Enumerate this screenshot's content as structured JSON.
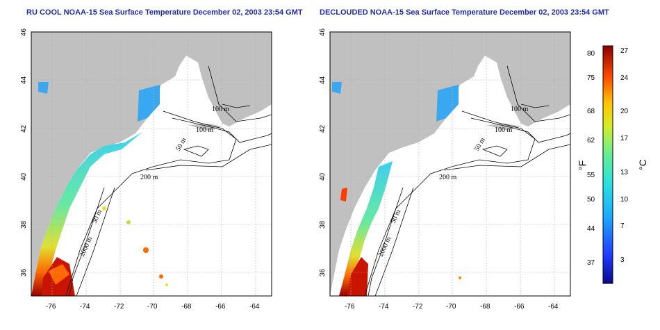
{
  "left_panel": {
    "title": "RU COOL NOAA-15 Sea Surface Temperature December 02, 2003 23:54 GMT",
    "contour_labels": [
      "100 m",
      "100 m",
      "50 m",
      "200 m",
      "50 m",
      "2000 m"
    ]
  },
  "right_panel": {
    "title": "DECLOUDED NOAA-15 Sea Surface Temperature December 02, 2003 23:54 GMT",
    "contour_labels": [
      "100 m",
      "100 m",
      "50 m",
      "200 m",
      "50 m",
      "2000 m"
    ]
  },
  "axes": {
    "lon_ticks": [
      "-76",
      "-74",
      "-72",
      "-70",
      "-68",
      "-66",
      "-64"
    ],
    "lat_ticks": [
      "46",
      "44",
      "42",
      "40",
      "38",
      "36"
    ]
  },
  "colorbar": {
    "fahrenheit_ticks": [
      "80",
      "75",
      "68",
      "62",
      "55",
      "50",
      "44",
      "37"
    ],
    "celsius_ticks": [
      "27",
      "24",
      "20",
      "17",
      "13",
      "10",
      "7",
      "3"
    ],
    "unit_f": "°F",
    "unit_c": "°C"
  },
  "colors": {
    "land": "#c0c0c0",
    "ocean": "#ffffff",
    "title": "#1e2aa8"
  }
}
